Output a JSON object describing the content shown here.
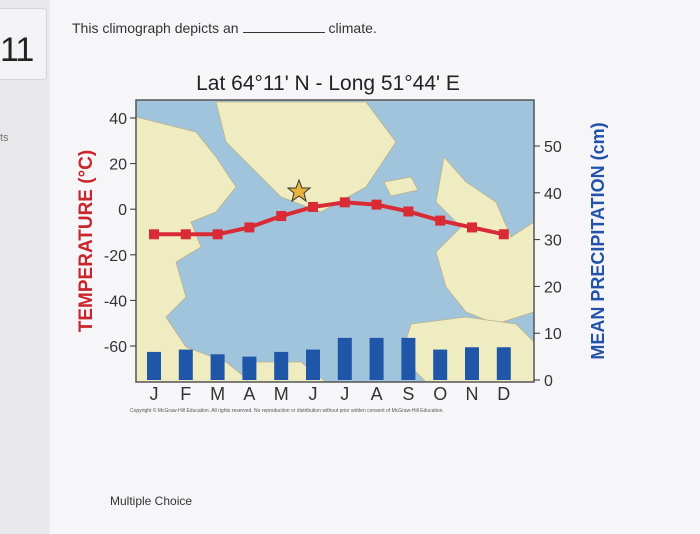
{
  "sidebar": {
    "question_number": "11",
    "points_fragment": "ts"
  },
  "question": {
    "text_before": "This climograph depicts an",
    "text_after": "climate."
  },
  "answer_area": {
    "label": "Multiple Choice"
  },
  "colors": {
    "temperature_line": "#d92b35",
    "precip_bar": "#1f56a8",
    "temp_axis_label": "#c9252c",
    "precip_axis_label": "#2253a8",
    "ocean": "#9fc4db",
    "land": "#f0ecc2"
  },
  "chart_data": {
    "type": "bar",
    "title": "Lat 64°11' N - Long 51°44' E",
    "categories": [
      "J",
      "F",
      "M",
      "A",
      "M",
      "J",
      "J",
      "A",
      "S",
      "O",
      "N",
      "D"
    ],
    "left_axis": {
      "label": "TEMPERATURE (°C)",
      "ticks": [
        "40",
        "20",
        "0",
        "-20",
        "-40",
        "-60"
      ],
      "range": [
        -60,
        40
      ]
    },
    "right_axis": {
      "label": "MEAN PRECIPITATION (cm)",
      "ticks": [
        "50",
        "40",
        "30",
        "20",
        "10",
        "0"
      ],
      "range": [
        0,
        50
      ]
    },
    "series": [
      {
        "type": "bar",
        "axis": "right",
        "values": [
          6,
          6.5,
          5.5,
          5,
          6,
          6.5,
          9,
          9,
          9,
          6.5,
          7,
          7
        ]
      },
      {
        "type": "line",
        "axis": "left",
        "values": [
          -11,
          -11,
          -11,
          -8,
          -3,
          1,
          3,
          2,
          -1,
          -5,
          -8,
          -11
        ]
      }
    ],
    "background": "map of the North Atlantic region with a star marker",
    "copyright": "Copyright © McGraw-Hill Education. All rights reserved. No reproduction or distribution without prior written consent of McGraw-Hill Education."
  }
}
